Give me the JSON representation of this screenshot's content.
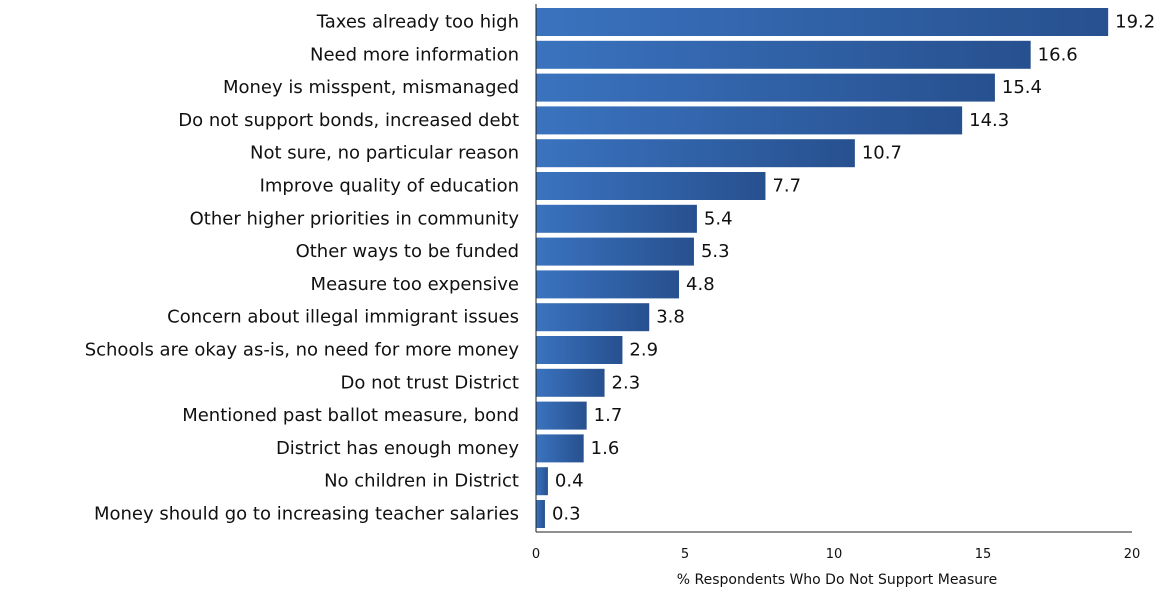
{
  "chart_data": {
    "type": "bar",
    "orientation": "horizontal",
    "categories": [
      "Taxes already too high",
      "Need more information",
      "Money is misspent, mismanaged",
      "Do not support bonds, increased debt",
      "Not sure, no particular reason",
      "Improve quality of education",
      "Other higher priorities in community",
      "Other ways to be funded",
      "Measure too expensive",
      "Concern about illegal immigrant issues",
      "Schools are okay as-is, no need for more money",
      "Do not trust District",
      "Mentioned past ballot measure, bond",
      "District has enough money",
      "No children in District",
      "Money should go to increasing teacher salaries"
    ],
    "values": [
      19.2,
      16.6,
      15.4,
      14.3,
      10.7,
      7.7,
      5.4,
      5.3,
      4.8,
      3.8,
      2.9,
      2.3,
      1.7,
      1.6,
      0.4,
      0.3
    ],
    "value_labels": [
      "19.2",
      "16.6",
      "15.4",
      "14.3",
      "10.7",
      "7.7",
      "5.4",
      "5.3",
      "4.8",
      "3.8",
      "2.9",
      "2.3",
      "1.7",
      "1.6",
      "0.4",
      "0.3"
    ],
    "xlabel": "% Respondents Who Do Not Support Measure",
    "xlim": [
      0,
      20
    ],
    "xticks": [
      0,
      5,
      10,
      15,
      20
    ],
    "xtick_labels": [
      "0",
      "5",
      "10",
      "15",
      "20"
    ],
    "grid": false,
    "legend": "none",
    "colors": {
      "bar_light": "#3a73bf",
      "bar_dark": "#27508f",
      "text": "#111111",
      "axis": "#222222"
    }
  }
}
